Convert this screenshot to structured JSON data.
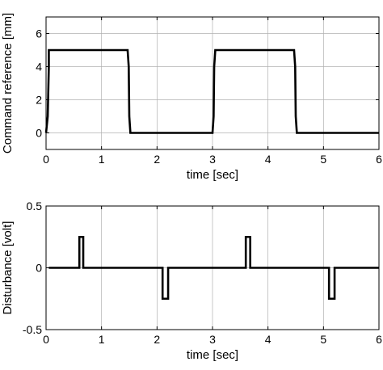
{
  "chart_data": [
    {
      "type": "line",
      "ylabel": "Command reference [mm]",
      "xlabel": "time [sec]",
      "xlim": [
        0,
        6
      ],
      "ylim": [
        -1.0,
        7.0
      ],
      "xticks": [
        "0",
        "1",
        "2",
        "3",
        "4",
        "5",
        "6"
      ],
      "yticks": [
        "0",
        "2",
        "4",
        "6"
      ],
      "ytick_values": [
        0,
        2,
        4,
        6
      ],
      "grid": true,
      "series": [
        {
          "x": [
            0,
            0.03,
            0.05,
            0.05,
            1.47,
            1.49,
            1.5,
            1.52,
            1.52,
            3.0,
            3.02,
            3.03,
            3.05,
            4.47,
            4.49,
            4.5,
            4.52,
            6.0
          ],
          "values": [
            0,
            1.0,
            4.0,
            5.0,
            5.0,
            4.0,
            1.0,
            0,
            0,
            0,
            1.0,
            4.0,
            5.0,
            5.0,
            4.0,
            1.0,
            0,
            0
          ]
        }
      ]
    },
    {
      "type": "line",
      "ylabel": "Disturbance [volt]",
      "xlabel": "time [sec]",
      "xlim": [
        0,
        6
      ],
      "ylim": [
        -0.5,
        0.5
      ],
      "xticks": [
        "0",
        "1",
        "2",
        "3",
        "4",
        "5",
        "6"
      ],
      "yticks": [
        "-0.5",
        "0",
        "0.5"
      ],
      "ytick_values": [
        -0.5,
        0,
        0.5
      ],
      "grid": true,
      "series": [
        {
          "x": [
            0.05,
            0.6,
            0.6,
            0.67,
            0.67,
            2.1,
            2.1,
            2.2,
            2.2,
            3.6,
            3.6,
            3.68,
            3.68,
            5.1,
            5.1,
            5.2,
            5.2,
            6.0
          ],
          "values": [
            0,
            0,
            0.25,
            0.25,
            0,
            0,
            -0.25,
            -0.25,
            0,
            0,
            0.25,
            0.25,
            0,
            0,
            -0.25,
            -0.25,
            0,
            0
          ]
        }
      ]
    }
  ]
}
